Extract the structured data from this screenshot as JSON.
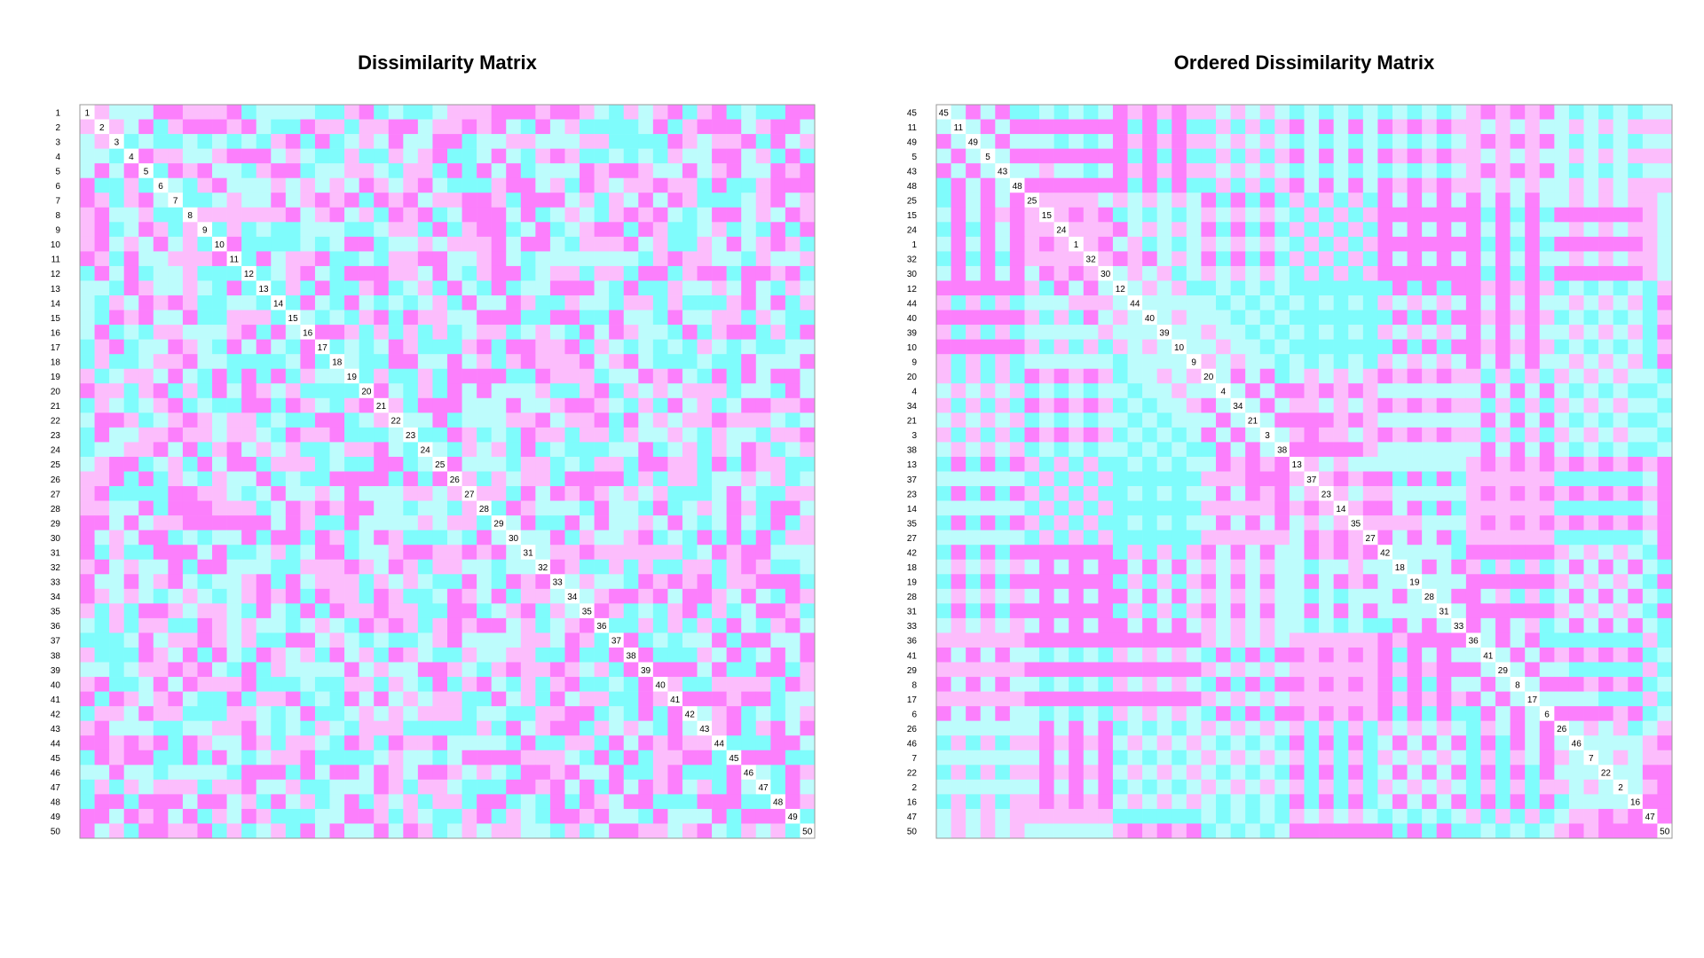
{
  "chart_data": [
    {
      "type": "heatmap",
      "title": "Dissimilarity Matrix",
      "row_labels": [
        1,
        2,
        3,
        4,
        5,
        6,
        7,
        8,
        9,
        10,
        11,
        12,
        13,
        14,
        15,
        16,
        17,
        18,
        19,
        20,
        21,
        22,
        23,
        24,
        25,
        26,
        27,
        28,
        29,
        30,
        31,
        32,
        33,
        34,
        35,
        36,
        37,
        38,
        39,
        40,
        41,
        42,
        43,
        44,
        45,
        46,
        47,
        48,
        49,
        50
      ],
      "diagonal_labels": [
        1,
        2,
        3,
        4,
        5,
        6,
        7,
        8,
        9,
        10,
        11,
        12,
        13,
        14,
        15,
        16,
        17,
        18,
        19,
        20,
        21,
        22,
        23,
        24,
        25,
        26,
        27,
        28,
        29,
        30,
        31,
        32,
        33,
        34,
        35,
        36,
        37,
        38,
        39,
        40,
        41,
        42,
        43,
        44,
        45,
        46,
        47,
        48,
        49,
        50
      ],
      "color_levels": [
        "#7ffcfc",
        "#bdfcfc",
        "#fcbdfc",
        "#fc7ffc"
      ],
      "grid": false,
      "legend": "none"
    },
    {
      "type": "heatmap",
      "title": "Ordered Dissimilarity Matrix",
      "row_labels": [
        45,
        11,
        49,
        5,
        43,
        48,
        25,
        15,
        24,
        1,
        32,
        30,
        12,
        44,
        40,
        39,
        10,
        9,
        20,
        4,
        34,
        21,
        3,
        38,
        13,
        37,
        23,
        14,
        35,
        27,
        42,
        18,
        19,
        28,
        31,
        33,
        36,
        41,
        29,
        8,
        17,
        6,
        26,
        46,
        7,
        22,
        2,
        16,
        47,
        50
      ],
      "diagonal_labels": [
        45,
        11,
        49,
        5,
        43,
        48,
        25,
        15,
        24,
        1,
        32,
        30,
        12,
        44,
        40,
        39,
        10,
        9,
        20,
        4,
        34,
        21,
        3,
        38,
        13,
        37,
        23,
        14,
        35,
        27,
        42,
        18,
        19,
        28,
        31,
        33,
        36,
        41,
        29,
        8,
        17,
        6,
        26,
        46,
        7,
        22,
        2,
        16,
        47,
        50
      ],
      "color_levels": [
        "#7ffcfc",
        "#bdfcfc",
        "#fcbdfc",
        "#fc7ffc"
      ],
      "grid": false,
      "legend": "none"
    }
  ]
}
